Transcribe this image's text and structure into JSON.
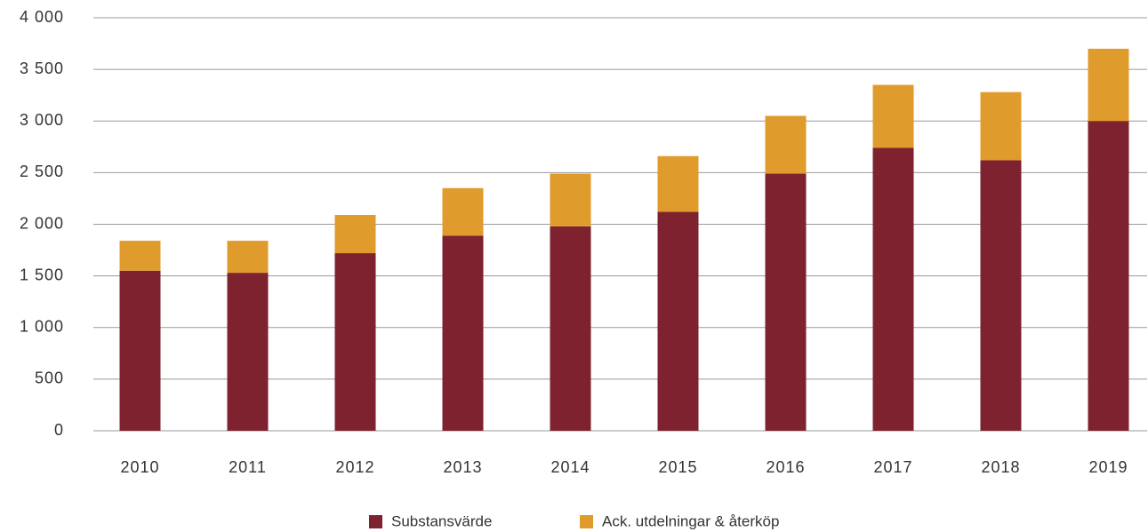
{
  "chart_data": {
    "type": "stacked_bar",
    "categories": [
      "2010",
      "2011",
      "2012",
      "2013",
      "2014",
      "2015",
      "2016",
      "2017",
      "2018",
      "2019"
    ],
    "series": [
      {
        "name": "Substansvärde",
        "color": "#7d222e",
        "values": [
          1550,
          1530,
          1720,
          1890,
          1980,
          2120,
          2490,
          2740,
          2620,
          3000
        ]
      },
      {
        "name": "Ack. utdelningar & återköp",
        "color": "#e09b2d",
        "values": [
          290,
          310,
          370,
          460,
          510,
          540,
          560,
          610,
          660,
          700
        ]
      }
    ],
    "ylim": [
      0,
      4000
    ],
    "yticks": [
      0,
      500,
      {
        "value": 1000,
        "label": "1 000"
      },
      {
        "value": 1500,
        "label": "1 500"
      },
      {
        "value": 2000,
        "label": "2 000"
      },
      {
        "value": 2500,
        "label": "2 500"
      },
      {
        "value": 3000,
        "label": "3 000"
      },
      {
        "value": 3500,
        "label": "3 500"
      },
      {
        "value": 4000,
        "label": "4 000"
      }
    ],
    "grid": true,
    "legend": "bottom"
  }
}
